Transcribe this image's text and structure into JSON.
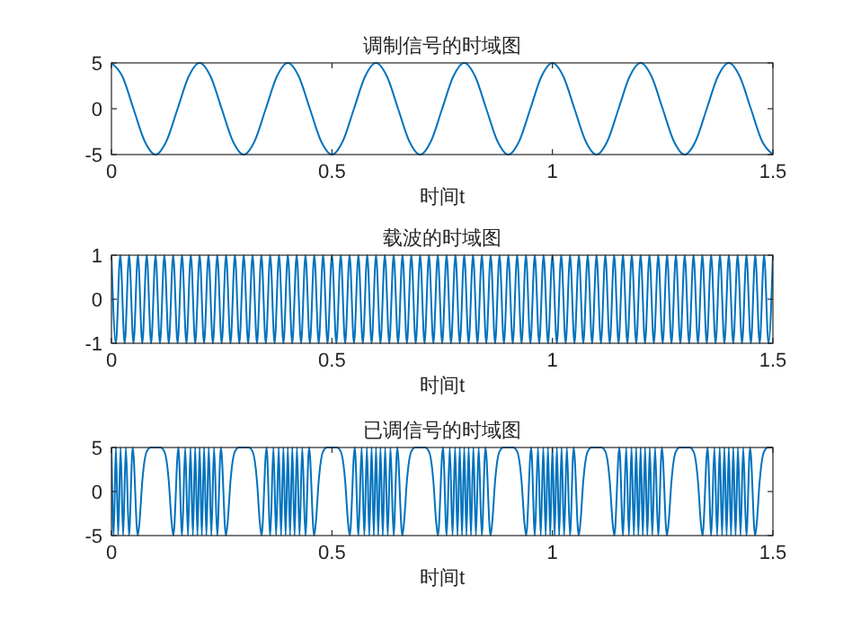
{
  "chart_data": [
    {
      "type": "line",
      "title": "调制信号的时域图",
      "xlabel": "时间t",
      "color": "#0072bd",
      "xlim": [
        0,
        1.5
      ],
      "xticks": [
        0,
        0.5,
        1,
        1.5
      ],
      "ylim": [
        -5,
        5
      ],
      "yticks": [
        -5,
        0,
        5
      ],
      "x": [
        0,
        0.025,
        0.05,
        0.075,
        0.1,
        0.125,
        0.15,
        0.175,
        0.2,
        0.225,
        0.25,
        0.275,
        0.3,
        0.325,
        0.35,
        0.375,
        0.4,
        0.425,
        0.45,
        0.475,
        0.5,
        0.525,
        0.55,
        0.575,
        0.6,
        0.625,
        0.65,
        0.675,
        0.7,
        0.725,
        0.75,
        0.775,
        0.8,
        0.825,
        0.85,
        0.875,
        0.9,
        0.925,
        0.95,
        0.975,
        1,
        1.025,
        1.05,
        1.075,
        1.1,
        1.125,
        1.15,
        1.175,
        1.2,
        1.225,
        1.25,
        1.275,
        1.3,
        1.325,
        1.35,
        1.375,
        1.4,
        1.425,
        1.45,
        1.475,
        1.5
      ],
      "values": [
        5,
        3.5,
        0,
        -3.5,
        -5,
        -3.5,
        0,
        3.5,
        5,
        3.5,
        0,
        -3.5,
        -5,
        -3.5,
        0,
        3.5,
        5,
        3.5,
        0,
        -3.5,
        -5,
        -3.5,
        0,
        3.5,
        5,
        3.5,
        0,
        -3.5,
        -5,
        -3.5,
        0,
        3.5,
        5,
        3.5,
        0,
        -3.5,
        -5,
        -3.5,
        0,
        3.5,
        5,
        3.5,
        0,
        -3.5,
        -5,
        -3.5,
        0,
        3.5,
        5,
        3.5,
        0,
        -3.5,
        -5,
        -3.5,
        0,
        3.5,
        5,
        3.5,
        0,
        -3.5,
        -5
      ]
    },
    {
      "type": "line",
      "title": "载波的时域图",
      "xlabel": "时间t",
      "color": "#0072bd",
      "xlim": [
        0,
        1.5
      ],
      "xticks": [
        0,
        0.5,
        1,
        1.5
      ],
      "ylim": [
        -1,
        1
      ],
      "yticks": [
        -1,
        0,
        1
      ],
      "x": [
        0,
        0.01,
        0.02,
        0.03,
        0.04,
        0.05,
        0.06,
        0.07,
        0.08,
        0.09,
        0.1,
        0.11,
        0.12,
        0.13,
        0.14,
        0.15,
        0.16,
        0.17,
        0.18,
        0.19,
        0.2,
        0.21,
        0.22,
        0.23,
        0.24,
        0.25,
        0.26,
        0.27,
        0.28,
        0.29,
        0.3,
        0.31,
        0.32,
        0.33,
        0.34,
        0.35,
        0.36,
        0.37,
        0.38,
        0.39,
        0.4,
        0.41,
        0.42,
        0.43,
        0.44,
        0.45,
        0.46,
        0.47,
        0.48,
        0.49,
        0.5,
        0.51,
        0.52,
        0.53,
        0.54,
        0.55,
        0.56,
        0.57,
        0.58,
        0.59,
        0.6,
        0.61,
        0.62,
        0.63,
        0.64,
        0.65,
        0.66,
        0.67,
        0.68,
        0.69,
        0.7,
        0.71,
        0.72,
        0.73,
        0.74,
        0.75,
        0.76,
        0.77,
        0.78,
        0.79,
        0.8,
        0.81,
        0.82,
        0.83,
        0.84,
        0.85,
        0.86,
        0.87,
        0.88,
        0.89,
        0.9,
        0.91,
        0.92,
        0.93,
        0.94,
        0.95,
        0.96,
        0.97,
        0.98,
        0.99,
        1,
        1.01,
        1.02,
        1.03,
        1.04,
        1.05,
        1.06,
        1.07,
        1.08,
        1.09,
        1.1,
        1.11,
        1.12,
        1.13,
        1.14,
        1.15,
        1.16,
        1.17,
        1.18,
        1.19,
        1.2,
        1.21,
        1.22,
        1.23,
        1.24,
        1.25,
        1.26,
        1.27,
        1.28,
        1.29,
        1.3,
        1.31,
        1.32,
        1.33,
        1.34,
        1.35,
        1.36,
        1.37,
        1.38,
        1.39,
        1.4,
        1.41,
        1.42,
        1.43,
        1.44,
        1.45,
        1.46,
        1.47,
        1.48,
        1.49,
        1.5
      ],
      "values": [
        1,
        -1,
        1,
        -1,
        1,
        -1,
        1,
        -1,
        1,
        -1,
        1,
        -1,
        1,
        -1,
        1,
        -1,
        1,
        -1,
        1,
        -1,
        1,
        -1,
        1,
        -1,
        1,
        -1,
        1,
        -1,
        1,
        -1,
        1,
        -1,
        1,
        -1,
        1,
        -1,
        1,
        -1,
        1,
        -1,
        1,
        -1,
        1,
        -1,
        1,
        -1,
        1,
        -1,
        1,
        -1,
        1,
        -1,
        1,
        -1,
        1,
        -1,
        1,
        -1,
        1,
        -1,
        1,
        -1,
        1,
        -1,
        1,
        -1,
        1,
        -1,
        1,
        -1,
        1,
        -1,
        1,
        -1,
        1,
        -1,
        1,
        -1,
        1,
        -1,
        1,
        -1,
        1,
        -1,
        1,
        -1,
        1,
        -1,
        1,
        -1,
        1,
        -1,
        1,
        -1,
        1,
        -1,
        1,
        -1,
        1,
        -1,
        1,
        -1,
        1,
        -1,
        1,
        -1,
        1,
        -1,
        1,
        -1,
        1,
        -1,
        1,
        -1,
        1,
        -1,
        1,
        -1,
        1,
        -1,
        1,
        -1,
        1,
        -1,
        1,
        -1,
        1,
        -1,
        1,
        -1,
        1,
        -1,
        1,
        -1,
        1,
        -1,
        1,
        -1,
        1,
        -1,
        1,
        -1,
        1,
        -1,
        1,
        -1,
        1,
        -1,
        1,
        -1,
        1
      ]
    },
    {
      "type": "line",
      "title": "已调信号的时域图",
      "xlabel": "时间t",
      "color": "#0072bd",
      "xlim": [
        0,
        1.5
      ],
      "xticks": [
        0,
        0.5,
        1,
        1.5
      ],
      "ylim": [
        -5,
        5
      ],
      "yticks": [
        -5,
        0,
        5
      ],
      "x": [
        0,
        0.005,
        0.0101,
        0.0153,
        0.0207,
        0.0265,
        0.0327,
        0.0398,
        0.0482,
        0.0596,
        0.0637,
        0.07,
        0.0796,
        0.0891,
        0.1,
        0.1109,
        0.1204,
        0.13,
        0.1363,
        0.1404,
        0.1518,
        0.1602,
        0.1673,
        0.1735,
        0.1793,
        0.1847,
        0.1899,
        0.195,
        0.2,
        0.205,
        0.2101,
        0.2153,
        0.2207,
        0.2265,
        0.2327,
        0.2398,
        0.2482,
        0.2596,
        0.2637,
        0.27,
        0.2796,
        0.2891,
        0.3,
        0.3109,
        0.3204,
        0.33,
        0.3363,
        0.3404,
        0.3518,
        0.3602,
        0.3673,
        0.3735,
        0.3793,
        0.3847,
        0.3899,
        0.395,
        0.4,
        0.405,
        0.4101,
        0.4153,
        0.4207,
        0.4265,
        0.4327,
        0.4398,
        0.4482,
        0.4596,
        0.4637,
        0.47,
        0.4796,
        0.4891,
        0.5,
        0.5109,
        0.5204,
        0.53,
        0.5363,
        0.5404,
        0.5518,
        0.5602,
        0.5673,
        0.5735,
        0.5793,
        0.5847,
        0.5899,
        0.595,
        0.6,
        0.605,
        0.6101,
        0.6153,
        0.6207,
        0.6265,
        0.6327,
        0.6398,
        0.6482,
        0.6596,
        0.6637,
        0.67,
        0.6796,
        0.6891,
        0.7,
        0.7109,
        0.7204,
        0.73,
        0.7363,
        0.7404,
        0.7518,
        0.7602,
        0.7673,
        0.7735,
        0.7793,
        0.7847,
        0.7899,
        0.795,
        0.8,
        0.805,
        0.8101,
        0.8153,
        0.8207,
        0.8265,
        0.8327,
        0.8398,
        0.8482,
        0.8596,
        0.8637,
        0.87,
        0.8796,
        0.8891,
        0.9,
        0.9109,
        0.9204,
        0.93,
        0.9363,
        0.9404,
        0.9518,
        0.9602,
        0.9673,
        0.9735,
        0.9793,
        0.9847,
        0.9899,
        0.995,
        1,
        1.005,
        1.0101,
        1.0153,
        1.0207,
        1.0265,
        1.0327,
        1.0398,
        1.0482,
        1.0596,
        1.0637,
        1.07,
        1.0796,
        1.0891,
        1.1,
        1.1109,
        1.1204,
        1.13,
        1.1363,
        1.1404,
        1.1518,
        1.1602,
        1.1673,
        1.1735,
        1.1793,
        1.1847,
        1.1899,
        1.195,
        1.2,
        1.205,
        1.2101,
        1.2153,
        1.2207,
        1.2265,
        1.2327,
        1.2398,
        1.2482,
        1.2596,
        1.2637,
        1.27,
        1.2796,
        1.2891,
        1.3,
        1.3109,
        1.3204,
        1.33,
        1.3363,
        1.3404,
        1.3518,
        1.3602,
        1.3673,
        1.3735,
        1.3793,
        1.3847,
        1.3899,
        1.395,
        1.4,
        1.405,
        1.4101,
        1.4153,
        1.4207,
        1.4265,
        1.4327,
        1.4398,
        1.4482,
        1.4596,
        1.4637,
        1.47,
        1.4796,
        1.4891,
        1.5
      ],
      "values": [
        5,
        -5,
        5,
        -5,
        5,
        -5,
        5,
        -5,
        5,
        -5,
        -3.4,
        1.2,
        4.5,
        5,
        5,
        5,
        4.5,
        1.2,
        -3.4,
        -5,
        5,
        -5,
        5,
        -5,
        5,
        -5,
        5,
        -5,
        5,
        -5,
        5,
        -5,
        5,
        -5,
        5,
        -5,
        5,
        -5,
        -3.4,
        1.2,
        4.5,
        5,
        5,
        5,
        4.5,
        1.2,
        -3.4,
        -5,
        5,
        -5,
        5,
        -5,
        5,
        -5,
        5,
        -5,
        5,
        -5,
        5,
        -5,
        5,
        -5,
        5,
        -5,
        5,
        -5,
        -3.4,
        1.2,
        4.5,
        5,
        5,
        5,
        4.5,
        1.2,
        -3.4,
        -5,
        5,
        -5,
        5,
        -5,
        5,
        -5,
        5,
        -5,
        5,
        -5,
        5,
        -5,
        5,
        -5,
        5,
        -5,
        5,
        -5,
        -3.4,
        1.2,
        4.5,
        5,
        5,
        5,
        4.5,
        1.2,
        -3.4,
        -5,
        5,
        -5,
        5,
        -5,
        5,
        -5,
        5,
        -5,
        5,
        -5,
        5,
        -5,
        5,
        -5,
        5,
        -5,
        5,
        -5,
        -3.4,
        1.2,
        4.5,
        5,
        5,
        5,
        4.5,
        1.2,
        -3.4,
        -5,
        5,
        -5,
        5,
        -5,
        5,
        -5,
        5,
        -5,
        5,
        -5,
        5,
        -5,
        5,
        -5,
        5,
        -5,
        5,
        -5,
        -3.4,
        1.2,
        4.5,
        5,
        5,
        5,
        4.5,
        1.2,
        -3.4,
        -5,
        5,
        -5,
        5,
        -5,
        5,
        -5,
        5,
        -5,
        5,
        -5,
        5,
        -5,
        5,
        -5,
        5,
        -5,
        5,
        -5,
        -3.4,
        1.2,
        4.5,
        5,
        5,
        5,
        4.5,
        1.2,
        -3.4,
        -5,
        5,
        -5,
        5,
        -5,
        5,
        -5,
        5,
        -5,
        5,
        -5,
        5,
        -5,
        5,
        -5,
        5,
        -5,
        5,
        -5,
        -3.4,
        1.2,
        4.5,
        5,
        5
      ]
    }
  ]
}
